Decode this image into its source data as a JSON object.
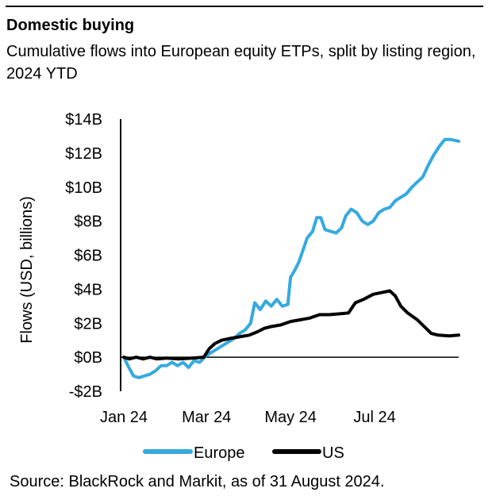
{
  "header": {
    "title": "Domestic buying",
    "subtitle": "Cumulative flows into European equity ETPs, split by listing region, 2024 YTD"
  },
  "source": "Source: BlackRock and Markit, as of 31 August 2024.",
  "chart_data": {
    "type": "line",
    "title": "Domestic buying",
    "subtitle": "Cumulative flows into European equity ETPs, split by listing region, 2024 YTD",
    "ylabel": "Flows (USD, billions)",
    "xlabel": "",
    "ylim": [
      -2,
      14
    ],
    "yticks": [
      -2,
      0,
      2,
      4,
      6,
      8,
      10,
      12,
      14
    ],
    "ytick_labels": [
      "-$2B",
      "$0B",
      "$2B",
      "$4B",
      "$6B",
      "$8B",
      "$10B",
      "$12B",
      "$14B"
    ],
    "xlim": [
      "2024-01-01",
      "2024-08-31"
    ],
    "xticks": [
      "2024-01-01",
      "2024-03-01",
      "2024-05-01",
      "2024-07-01"
    ],
    "xtick_labels": [
      "Jan 24",
      "Mar 24",
      "May 24",
      "Jul 24"
    ],
    "grid": false,
    "legend_position": "bottom-center",
    "series": [
      {
        "name": "Europe",
        "color": "#35a9e0",
        "points": [
          [
            "2024-01-01",
            0.0
          ],
          [
            "2024-01-04",
            -0.5
          ],
          [
            "2024-01-08",
            -1.1
          ],
          [
            "2024-01-12",
            -1.2
          ],
          [
            "2024-01-16",
            -1.1
          ],
          [
            "2024-01-20",
            -1.0
          ],
          [
            "2024-01-24",
            -0.8
          ],
          [
            "2024-01-28",
            -0.5
          ],
          [
            "2024-02-01",
            -0.5
          ],
          [
            "2024-02-05",
            -0.3
          ],
          [
            "2024-02-09",
            -0.5
          ],
          [
            "2024-02-13",
            -0.3
          ],
          [
            "2024-02-17",
            -0.6
          ],
          [
            "2024-02-21",
            -0.2
          ],
          [
            "2024-02-25",
            -0.3
          ],
          [
            "2024-03-01",
            0.1
          ],
          [
            "2024-03-05",
            0.3
          ],
          [
            "2024-03-09",
            0.5
          ],
          [
            "2024-03-13",
            0.7
          ],
          [
            "2024-03-17",
            0.9
          ],
          [
            "2024-03-21",
            1.1
          ],
          [
            "2024-03-25",
            1.4
          ],
          [
            "2024-03-29",
            1.6
          ],
          [
            "2024-04-02",
            2.0
          ],
          [
            "2024-04-05",
            3.2
          ],
          [
            "2024-04-09",
            2.8
          ],
          [
            "2024-04-13",
            3.3
          ],
          [
            "2024-04-17",
            3.0
          ],
          [
            "2024-04-21",
            3.4
          ],
          [
            "2024-04-25",
            3.0
          ],
          [
            "2024-04-29",
            3.1
          ],
          [
            "2024-05-01",
            4.7
          ],
          [
            "2024-05-04",
            5.1
          ],
          [
            "2024-05-07",
            5.6
          ],
          [
            "2024-05-10",
            6.3
          ],
          [
            "2024-05-13",
            7.0
          ],
          [
            "2024-05-17",
            7.4
          ],
          [
            "2024-05-20",
            8.2
          ],
          [
            "2024-05-23",
            8.2
          ],
          [
            "2024-05-26",
            7.5
          ],
          [
            "2024-05-30",
            7.4
          ],
          [
            "2024-06-03",
            7.3
          ],
          [
            "2024-06-07",
            7.6
          ],
          [
            "2024-06-10",
            8.3
          ],
          [
            "2024-06-14",
            8.7
          ],
          [
            "2024-06-18",
            8.5
          ],
          [
            "2024-06-22",
            8.0
          ],
          [
            "2024-06-26",
            7.8
          ],
          [
            "2024-06-30",
            8.0
          ],
          [
            "2024-07-04",
            8.5
          ],
          [
            "2024-07-08",
            8.7
          ],
          [
            "2024-07-12",
            8.8
          ],
          [
            "2024-07-16",
            9.2
          ],
          [
            "2024-07-20",
            9.4
          ],
          [
            "2024-07-24",
            9.6
          ],
          [
            "2024-07-28",
            10.0
          ],
          [
            "2024-08-01",
            10.3
          ],
          [
            "2024-08-05",
            10.6
          ],
          [
            "2024-08-09",
            11.3
          ],
          [
            "2024-08-13",
            11.9
          ],
          [
            "2024-08-17",
            12.4
          ],
          [
            "2024-08-21",
            12.8
          ],
          [
            "2024-08-25",
            12.8
          ],
          [
            "2024-08-31",
            12.7
          ]
        ]
      },
      {
        "name": "US",
        "color": "#000000",
        "points": [
          [
            "2024-01-01",
            0.0
          ],
          [
            "2024-01-05",
            -0.1
          ],
          [
            "2024-01-10",
            0.0
          ],
          [
            "2024-01-15",
            -0.1
          ],
          [
            "2024-01-20",
            0.0
          ],
          [
            "2024-01-25",
            -0.1
          ],
          [
            "2024-02-01",
            -0.05
          ],
          [
            "2024-02-10",
            -0.1
          ],
          [
            "2024-02-20",
            -0.05
          ],
          [
            "2024-02-28",
            0.0
          ],
          [
            "2024-03-03",
            0.5
          ],
          [
            "2024-03-07",
            0.8
          ],
          [
            "2024-03-12",
            1.0
          ],
          [
            "2024-03-18",
            1.1
          ],
          [
            "2024-03-25",
            1.2
          ],
          [
            "2024-04-01",
            1.3
          ],
          [
            "2024-04-07",
            1.5
          ],
          [
            "2024-04-12",
            1.7
          ],
          [
            "2024-04-17",
            1.8
          ],
          [
            "2024-04-24",
            1.9
          ],
          [
            "2024-05-01",
            2.1
          ],
          [
            "2024-05-08",
            2.2
          ],
          [
            "2024-05-15",
            2.3
          ],
          [
            "2024-05-22",
            2.5
          ],
          [
            "2024-05-29",
            2.5
          ],
          [
            "2024-06-05",
            2.55
          ],
          [
            "2024-06-12",
            2.6
          ],
          [
            "2024-06-17",
            3.2
          ],
          [
            "2024-06-23",
            3.4
          ],
          [
            "2024-06-30",
            3.7
          ],
          [
            "2024-07-06",
            3.8
          ],
          [
            "2024-07-12",
            3.9
          ],
          [
            "2024-07-16",
            3.6
          ],
          [
            "2024-07-20",
            3.0
          ],
          [
            "2024-07-25",
            2.6
          ],
          [
            "2024-08-01",
            2.2
          ],
          [
            "2024-08-06",
            1.8
          ],
          [
            "2024-08-11",
            1.4
          ],
          [
            "2024-08-16",
            1.3
          ],
          [
            "2024-08-24",
            1.25
          ],
          [
            "2024-08-31",
            1.3
          ]
        ]
      }
    ]
  }
}
